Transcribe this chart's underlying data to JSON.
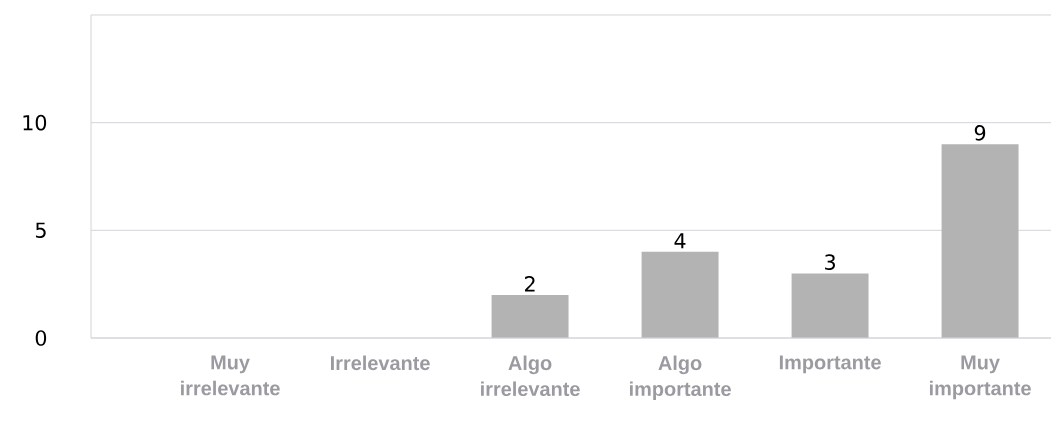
{
  "chart_data": {
    "type": "bar",
    "categories": [
      "Muy irrelevante",
      "Irrelevante",
      "Algo irrelevante",
      "Algo importante",
      "Importante",
      "Muy importante"
    ],
    "values": [
      0,
      0,
      2,
      4,
      3,
      9
    ],
    "value_labels": [
      null,
      null,
      "2",
      "4",
      "3",
      "9"
    ],
    "color": "#b3b3b3",
    "ylim": [
      0,
      15
    ],
    "yticks": [
      0,
      5,
      10,
      {
        "value": 15,
        "label": null
      }
    ],
    "grid": "y"
  }
}
